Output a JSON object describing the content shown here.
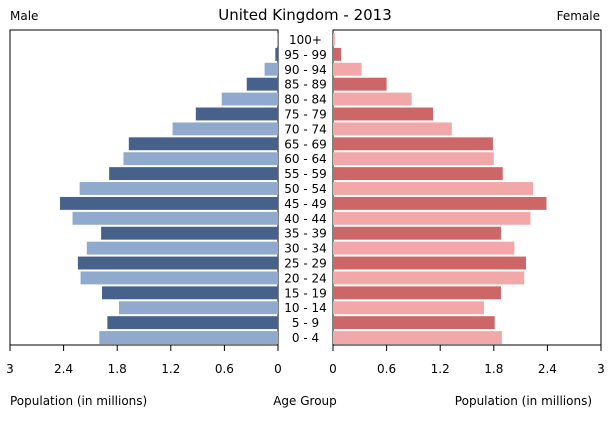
{
  "chart_data": {
    "type": "bar",
    "title": "United Kingdom - 2013",
    "left_label": "Male",
    "right_label": "Female",
    "xlabel_left": "Population (in millions)",
    "xlabel_center": "Age Group",
    "xlabel_right": "Population (in millions)",
    "xlim": [
      0,
      3
    ],
    "ticks": [
      3,
      2.4,
      1.8,
      1.2,
      0.6,
      0
    ],
    "tick_labels": [
      "3",
      "2.4",
      "1.8",
      "1.2",
      "0.6",
      "0"
    ],
    "right_tick_labels": [
      "0",
      "0.6",
      "1.2",
      "1.8",
      "2.4",
      "3"
    ],
    "categories": [
      "100+",
      "95 - 99",
      "90 - 94",
      "85 - 89",
      "80 - 84",
      "75 - 79",
      "70 - 74",
      "65 - 69",
      "60 - 64",
      "55 - 59",
      "50 - 54",
      "45 - 49",
      "40 - 44",
      "35 - 39",
      "30 - 34",
      "25 - 29",
      "20 - 24",
      "15 - 19",
      "10 - 14",
      "5 - 9",
      "0 - 4"
    ],
    "series": [
      {
        "name": "Male",
        "values": [
          0.01,
          0.03,
          0.15,
          0.35,
          0.63,
          0.92,
          1.18,
          1.67,
          1.73,
          1.89,
          2.22,
          2.44,
          2.3,
          1.98,
          2.14,
          2.24,
          2.21,
          1.97,
          1.78,
          1.91,
          2.0
        ],
        "colors": [
          "#8faacc",
          "#46628a"
        ]
      },
      {
        "name": "Female",
        "values": [
          0.02,
          0.09,
          0.32,
          0.6,
          0.88,
          1.12,
          1.33,
          1.79,
          1.8,
          1.9,
          2.24,
          2.39,
          2.21,
          1.88,
          2.03,
          2.16,
          2.14,
          1.88,
          1.69,
          1.81,
          1.89
        ],
        "colors": [
          "#f2a8a8",
          "#cd6666"
        ]
      }
    ]
  }
}
